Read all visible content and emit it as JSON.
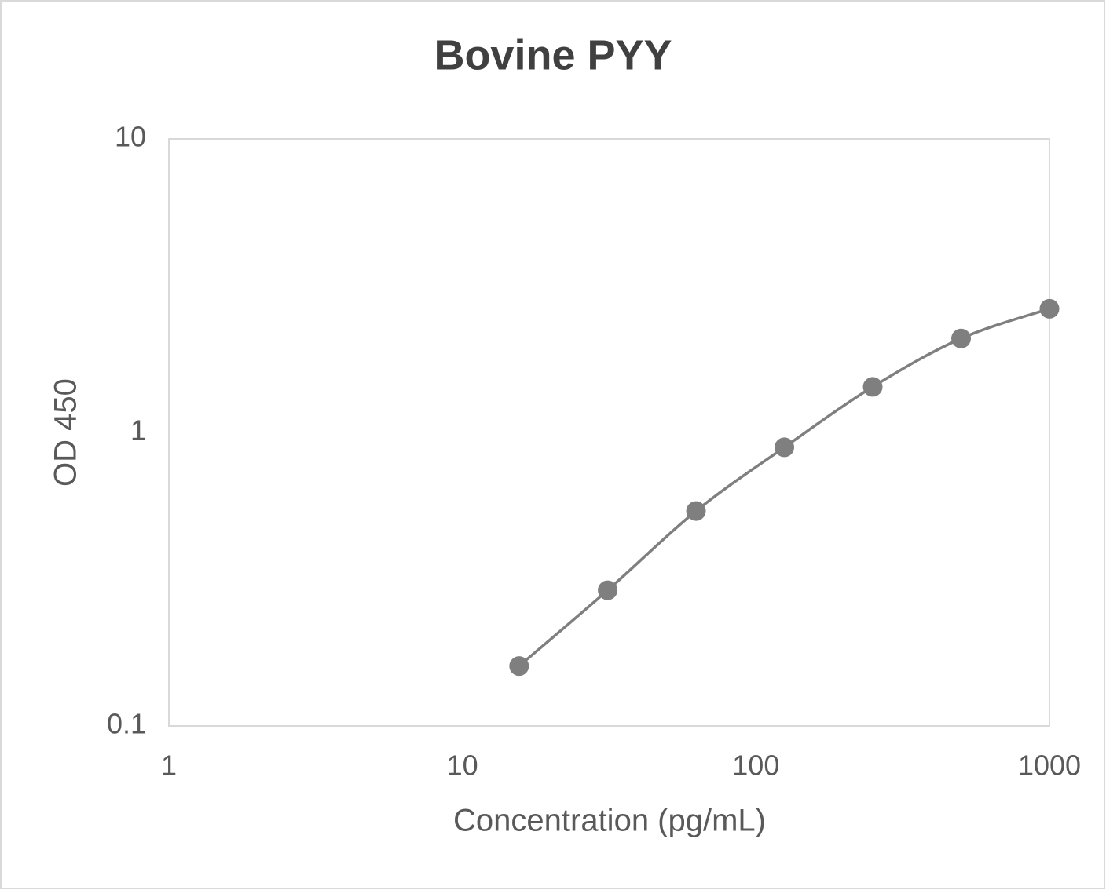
{
  "chart_data": {
    "type": "line",
    "title": "Bovine PYY",
    "x_label": "Concentration (pg/mL)",
    "y_label": "OD 450",
    "x": [
      15.6,
      31.25,
      62.5,
      125,
      250,
      500,
      1000
    ],
    "series": [
      {
        "name": "Bovine PYY",
        "color": "#7f7f7f",
        "values": [
          0.16,
          0.29,
          0.54,
          0.89,
          1.43,
          2.09,
          2.64
        ]
      }
    ],
    "xlim": [
      1,
      1000
    ],
    "xticks": [
      1,
      10,
      100,
      1000
    ],
    "ylim": [
      0.1,
      10
    ],
    "yticks": [
      0.1,
      1,
      10
    ],
    "xscale": "log",
    "yscale": "log",
    "grid": false,
    "smooth": true,
    "markers": true
  }
}
